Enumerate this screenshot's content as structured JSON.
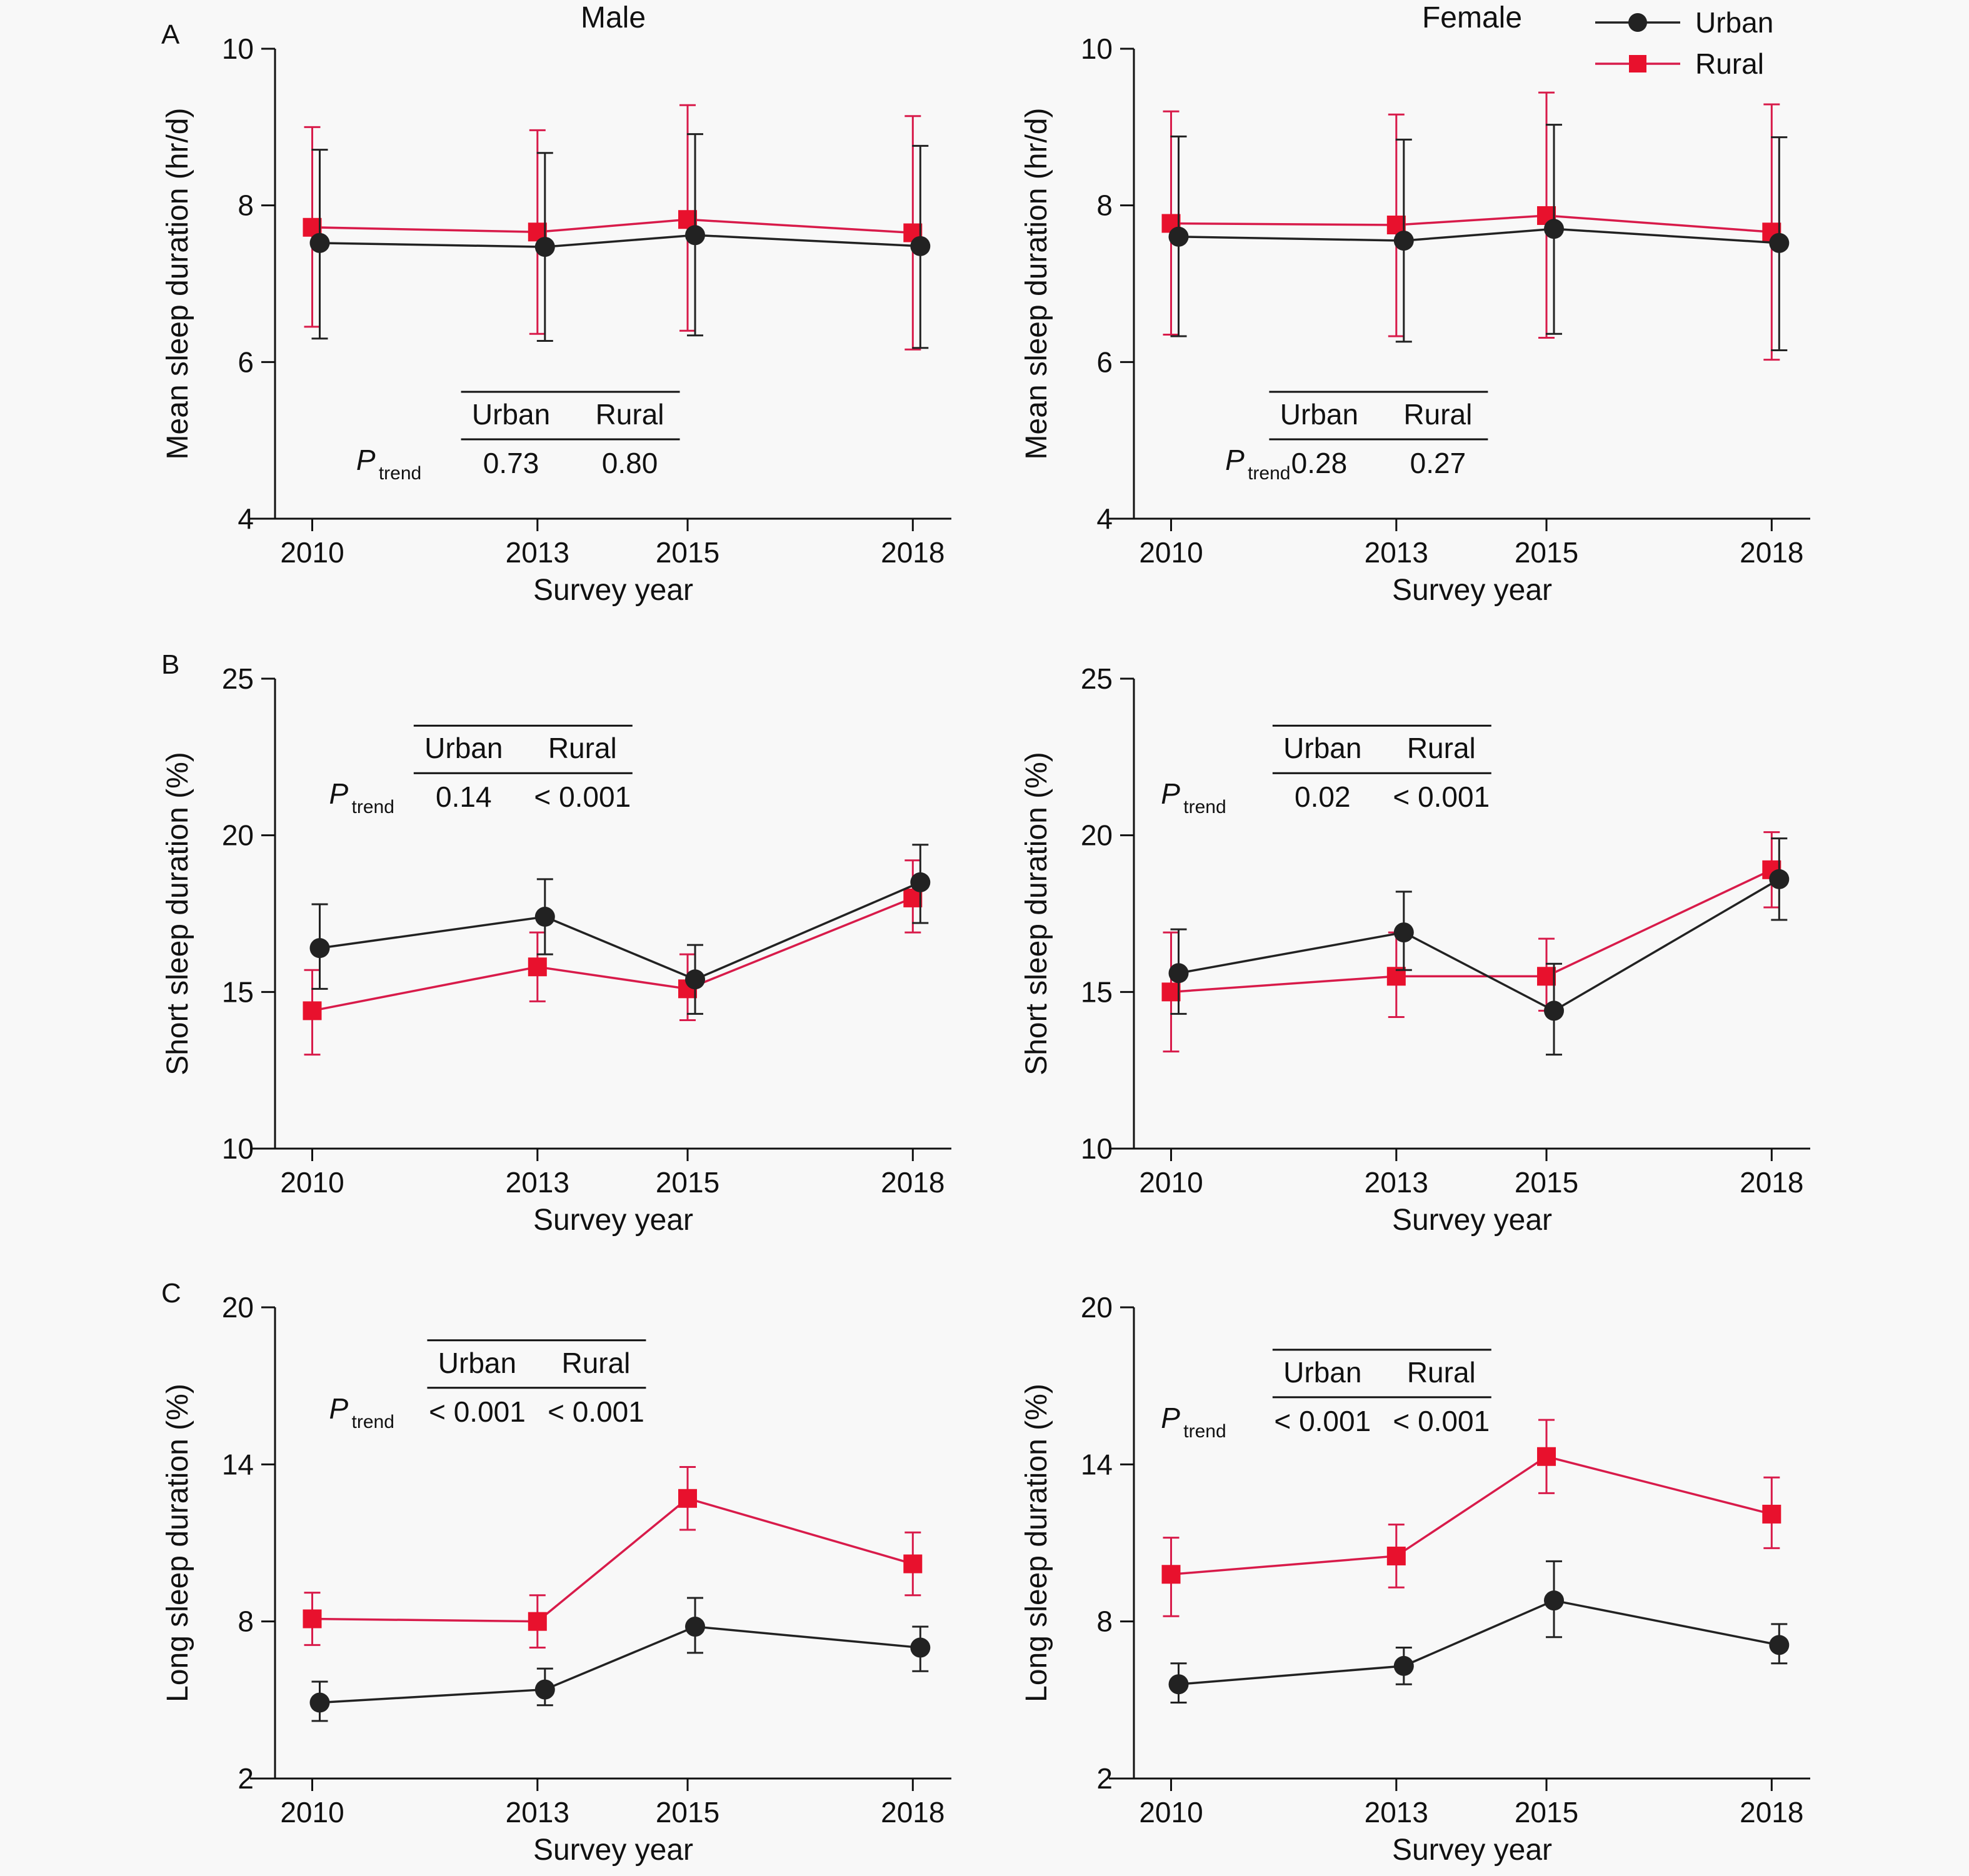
{
  "colors": {
    "urban": "#222222",
    "rural": "#e8112d",
    "rural_line": "#d81b4a"
  },
  "legend": {
    "urban": "Urban",
    "rural": "Rural"
  },
  "chart_data": [
    {
      "type": "line",
      "panel": "A",
      "sex": "Male",
      "title": "Male",
      "xlabel": "Survey year",
      "ylabel": "Mean sleep duration (hr/d)",
      "categories": [
        "2010",
        "2013",
        "2015",
        "2018"
      ],
      "ylim": [
        4,
        10
      ],
      "yticks": [
        "4",
        "6",
        "8",
        "10"
      ],
      "series": [
        {
          "name": "Urban",
          "values": [
            7.52,
            7.47,
            7.62,
            7.48
          ],
          "lower": [
            6.3,
            6.27,
            6.34,
            6.18
          ],
          "upper": [
            8.71,
            8.67,
            8.91,
            8.76
          ]
        },
        {
          "name": "Rural",
          "values": [
            7.72,
            7.66,
            7.82,
            7.65
          ],
          "lower": [
            6.45,
            6.36,
            6.4,
            6.16
          ],
          "upper": [
            9.0,
            8.96,
            9.28,
            9.14
          ]
        }
      ],
      "ptrend": {
        "label": "P",
        "sub": "trend",
        "urban": "0.73",
        "rural": "0.80"
      }
    },
    {
      "type": "line",
      "panel": "A",
      "sex": "Female",
      "title": "Female",
      "xlabel": "Survey year",
      "ylabel": "Mean sleep duration (hr/d)",
      "categories": [
        "2010",
        "2013",
        "2015",
        "2018"
      ],
      "ylim": [
        4,
        10
      ],
      "yticks": [
        "4",
        "6",
        "8",
        "10"
      ],
      "series": [
        {
          "name": "Urban",
          "values": [
            7.6,
            7.55,
            7.7,
            7.52
          ],
          "lower": [
            6.33,
            6.26,
            6.36,
            6.15
          ],
          "upper": [
            8.88,
            8.84,
            9.03,
            8.87
          ]
        },
        {
          "name": "Rural",
          "values": [
            7.77,
            7.75,
            7.87,
            7.66
          ],
          "lower": [
            6.35,
            6.33,
            6.31,
            6.03
          ],
          "upper": [
            9.2,
            9.16,
            9.44,
            9.29
          ]
        }
      ],
      "ptrend": {
        "label": "P",
        "sub": "trend",
        "urban": "0.28",
        "rural": "0.27"
      }
    },
    {
      "type": "line",
      "panel": "B",
      "sex": "Male",
      "title": "",
      "xlabel": "Survey year",
      "ylabel": "Short sleep duration (%)",
      "categories": [
        "2010",
        "2013",
        "2015",
        "2018"
      ],
      "ylim": [
        10,
        25
      ],
      "yticks": [
        "10",
        "15",
        "20",
        "25"
      ],
      "series": [
        {
          "name": "Urban",
          "values": [
            16.4,
            17.4,
            15.4,
            18.5
          ],
          "lower": [
            15.1,
            16.2,
            14.3,
            17.2
          ],
          "upper": [
            17.8,
            18.6,
            16.5,
            19.7
          ]
        },
        {
          "name": "Rural",
          "values": [
            14.4,
            15.8,
            15.1,
            18.0
          ],
          "lower": [
            13.0,
            14.7,
            14.1,
            16.9
          ],
          "upper": [
            15.7,
            16.9,
            16.2,
            19.2
          ]
        }
      ],
      "ptrend": {
        "label": "P",
        "sub": "trend",
        "urban": "0.14",
        "rural": "< 0.001"
      }
    },
    {
      "type": "line",
      "panel": "B",
      "sex": "Female",
      "title": "",
      "xlabel": "Survey year",
      "ylabel": "Short sleep duration (%)",
      "categories": [
        "2010",
        "2013",
        "2015",
        "2018"
      ],
      "ylim": [
        10,
        25
      ],
      "yticks": [
        "10",
        "15",
        "20",
        "25"
      ],
      "series": [
        {
          "name": "Urban",
          "values": [
            15.6,
            16.9,
            14.4,
            18.6
          ],
          "lower": [
            14.3,
            15.7,
            13.0,
            17.3
          ],
          "upper": [
            17.0,
            18.2,
            15.9,
            19.9
          ]
        },
        {
          "name": "Rural",
          "values": [
            15.0,
            15.5,
            15.5,
            18.9
          ],
          "lower": [
            13.1,
            14.2,
            14.4,
            17.7
          ],
          "upper": [
            16.9,
            16.9,
            16.7,
            20.1
          ]
        }
      ],
      "ptrend": {
        "label": "P",
        "sub": "trend",
        "urban": "0.02",
        "rural": "< 0.001"
      }
    },
    {
      "type": "line",
      "panel": "C",
      "sex": "Male",
      "title": "",
      "xlabel": "Survey year",
      "ylabel": "Long sleep duration (%)",
      "categories": [
        "2010",
        "2013",
        "2015",
        "2018"
      ],
      "ylim": [
        2,
        20
      ],
      "yticks": [
        "2",
        "8",
        "14",
        "20"
      ],
      "series": [
        {
          "name": "Urban",
          "values": [
            4.9,
            5.4,
            7.8,
            7.0
          ],
          "lower": [
            4.2,
            4.8,
            6.8,
            6.1
          ],
          "upper": [
            5.7,
            6.2,
            8.9,
            7.8
          ]
        },
        {
          "name": "Rural",
          "values": [
            8.1,
            8.0,
            12.7,
            10.2
          ],
          "lower": [
            7.1,
            7.0,
            11.5,
            9.0
          ],
          "upper": [
            9.1,
            9.0,
            13.9,
            11.4
          ]
        }
      ],
      "ptrend": {
        "label": "P",
        "sub": "trend",
        "urban": "< 0.001",
        "rural": "< 0.001"
      }
    },
    {
      "type": "line",
      "panel": "C",
      "sex": "Female",
      "title": "",
      "xlabel": "Survey year",
      "ylabel": "Long sleep duration (%)",
      "categories": [
        "2010",
        "2013",
        "2015",
        "2018"
      ],
      "ylim": [
        2,
        20
      ],
      "yticks": [
        "2",
        "8",
        "14",
        "20"
      ],
      "series": [
        {
          "name": "Urban",
          "values": [
            5.6,
            6.3,
            8.8,
            7.1
          ],
          "lower": [
            4.9,
            5.6,
            7.4,
            6.4
          ],
          "upper": [
            6.4,
            7.0,
            10.3,
            7.9
          ]
        },
        {
          "name": "Rural",
          "values": [
            9.8,
            10.5,
            14.3,
            12.1
          ],
          "lower": [
            8.2,
            9.3,
            12.9,
            10.8
          ],
          "upper": [
            11.2,
            11.7,
            15.7,
            13.5
          ]
        }
      ],
      "ptrend": {
        "label": "P",
        "sub": "trend",
        "urban": "< 0.001",
        "rural": "< 0.001"
      }
    }
  ]
}
